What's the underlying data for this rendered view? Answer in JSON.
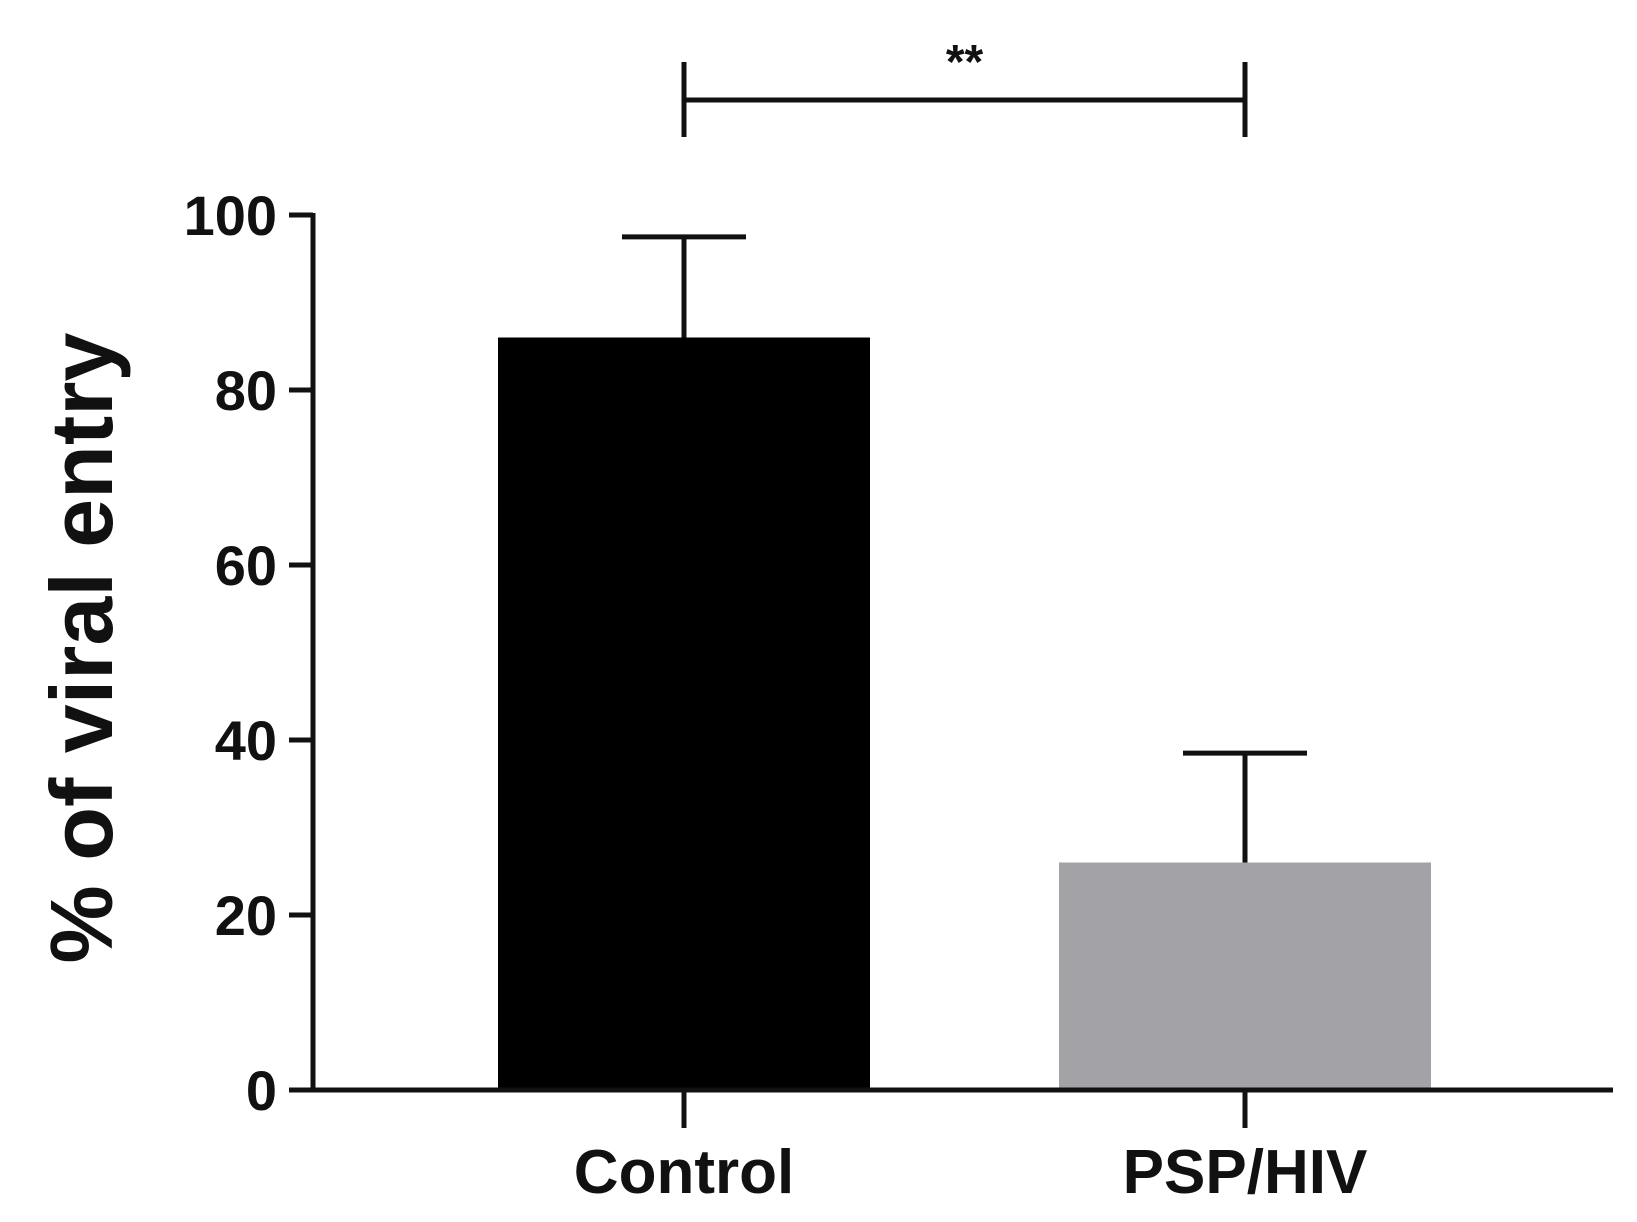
{
  "chart_data": {
    "type": "bar",
    "categories": [
      "Control",
      "PSP/HIV"
    ],
    "values": [
      86,
      26
    ],
    "errors": [
      11.5,
      12.5
    ],
    "bar_colors": [
      "#000000",
      "#a3a2a6"
    ],
    "ylabel": "% of viral entry",
    "ylim": [
      0,
      100
    ],
    "yticks": [
      0,
      20,
      40,
      60,
      80,
      100
    ],
    "ytick_labels": [
      "0",
      "20",
      "40",
      "60",
      "80",
      "100"
    ],
    "significance": {
      "from": "Control",
      "to": "PSP/HIV",
      "label": "**"
    }
  }
}
